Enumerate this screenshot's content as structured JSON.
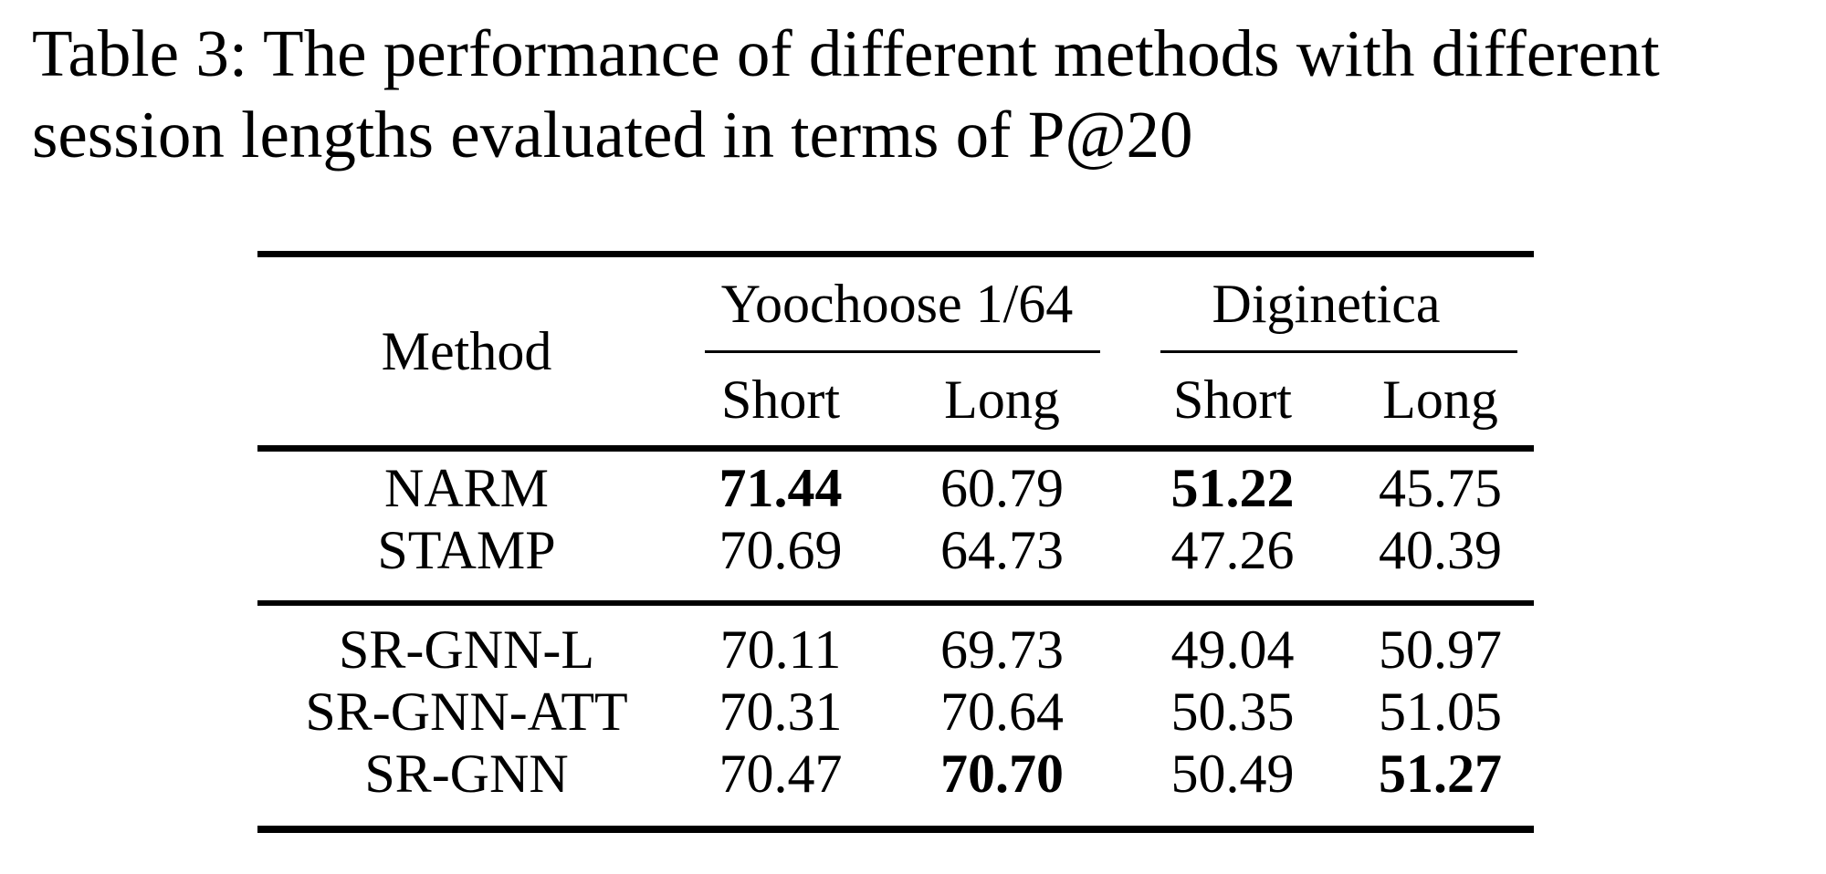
{
  "caption": {
    "line1": "Table 3: The performance of different methods with different",
    "line2": "session lengths evaluated in terms of P@20"
  },
  "table": {
    "method_header": "Method",
    "groups": [
      {
        "label": "Yoochoose 1/64"
      },
      {
        "label": "Diginetica"
      }
    ],
    "subheaders": [
      "Short",
      "Long",
      "Short",
      "Long"
    ],
    "rows": [
      {
        "method": "NARM",
        "values": [
          {
            "v": "71.44",
            "bold": true
          },
          {
            "v": "60.79",
            "bold": false
          },
          {
            "v": "51.22",
            "bold": true
          },
          {
            "v": "45.75",
            "bold": false
          }
        ]
      },
      {
        "method": "STAMP",
        "values": [
          {
            "v": "70.69",
            "bold": false
          },
          {
            "v": "64.73",
            "bold": false
          },
          {
            "v": "47.26",
            "bold": false
          },
          {
            "v": "40.39",
            "bold": false
          }
        ]
      },
      {
        "method": "SR-GNN-L",
        "values": [
          {
            "v": "70.11",
            "bold": false
          },
          {
            "v": "69.73",
            "bold": false
          },
          {
            "v": "49.04",
            "bold": false
          },
          {
            "v": "50.97",
            "bold": false
          }
        ]
      },
      {
        "method": "SR-GNN-ATT",
        "values": [
          {
            "v": "70.31",
            "bold": false
          },
          {
            "v": "70.64",
            "bold": false
          },
          {
            "v": "50.35",
            "bold": false
          },
          {
            "v": "51.05",
            "bold": false
          }
        ]
      },
      {
        "method": "SR-GNN",
        "values": [
          {
            "v": "70.47",
            "bold": false
          },
          {
            "v": "70.70",
            "bold": true
          },
          {
            "v": "50.49",
            "bold": false
          },
          {
            "v": "51.27",
            "bold": true
          }
        ]
      }
    ]
  },
  "chart_data": {
    "type": "table",
    "title": "Table 3: The performance of different methods with different session lengths evaluated in terms of P@20",
    "columns": [
      "Method",
      "Yoochoose 1/64 Short",
      "Yoochoose 1/64 Long",
      "Diginetica Short",
      "Diginetica Long"
    ],
    "rows": [
      [
        "NARM",
        71.44,
        60.79,
        51.22,
        45.75
      ],
      [
        "STAMP",
        70.69,
        64.73,
        47.26,
        40.39
      ],
      [
        "SR-GNN-L",
        70.11,
        69.73,
        49.04,
        50.97
      ],
      [
        "SR-GNN-ATT",
        70.31,
        70.64,
        50.35,
        51.05
      ],
      [
        "SR-GNN",
        70.47,
        70.7,
        50.49,
        51.27
      ]
    ],
    "bold_best": [
      [
        0,
        1
      ],
      [
        0,
        3
      ],
      [
        4,
        2
      ],
      [
        4,
        4
      ]
    ],
    "metric": "P@20"
  }
}
